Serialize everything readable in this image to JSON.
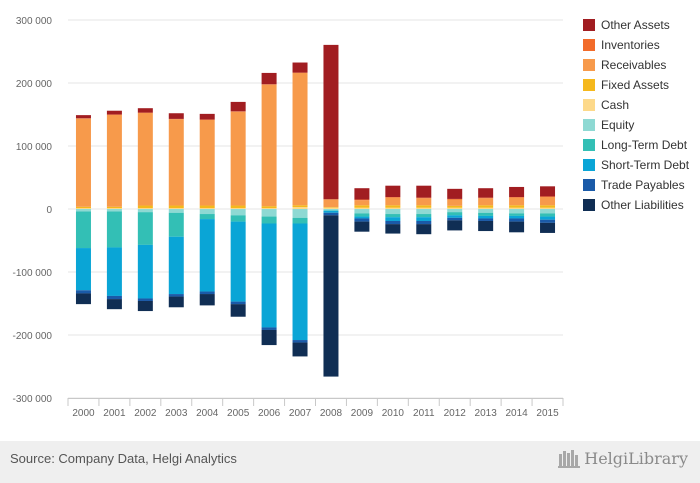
{
  "chart_data": {
    "type": "bar",
    "stacked": true,
    "categories": [
      "2000",
      "2001",
      "2002",
      "2003",
      "2004",
      "2005",
      "2006",
      "2007",
      "2008",
      "2009",
      "2010",
      "2011",
      "2012",
      "2013",
      "2014",
      "2015"
    ],
    "ylim": [
      -300000,
      300000
    ],
    "yticks": [
      300000,
      200000,
      100000,
      0,
      -100000,
      -200000,
      -300000
    ],
    "ytick_labels": [
      "300 000",
      "200 000",
      "100 000",
      "0",
      "-100 000",
      "-200 000",
      "-300 000"
    ],
    "grid": true,
    "legend_position": "right",
    "series": [
      {
        "name": "Other Assets",
        "color": "#a11d21",
        "values": [
          5000,
          6000,
          7000,
          9000,
          9000,
          15000,
          18000,
          16000,
          245000,
          18000,
          18000,
          19000,
          16000,
          15000,
          16000,
          16000
        ]
      },
      {
        "name": "Inventories",
        "color": "#f26b2a",
        "values": [
          500,
          500,
          500,
          500,
          500,
          500,
          500,
          500,
          500,
          1000,
          1000,
          1000,
          1000,
          1000,
          1000,
          1000
        ]
      },
      {
        "name": "Receivables",
        "color": "#f79a4b",
        "values": [
          140000,
          146000,
          147000,
          137000,
          136000,
          149000,
          193000,
          210000,
          12000,
          8000,
          12000,
          11000,
          10000,
          11000,
          12000,
          13000
        ]
      },
      {
        "name": "Fixed Assets",
        "color": "#f5b81c",
        "values": [
          2000,
          2000,
          4000,
          4000,
          4000,
          4000,
          3000,
          3000,
          1000,
          4000,
          4000,
          4000,
          3000,
          4000,
          4000,
          4000
        ]
      },
      {
        "name": "Cash",
        "color": "#fdd98a",
        "values": [
          1500,
          1500,
          1500,
          1500,
          1500,
          1500,
          1500,
          3000,
          2000,
          2000,
          2000,
          2000,
          2000,
          2000,
          2000,
          2000
        ]
      },
      {
        "name": "Equity",
        "color": "#8ed9d3",
        "values": [
          -4000,
          -4000,
          -5000,
          -6000,
          -8000,
          -10000,
          -12000,
          -14000,
          -2000,
          -7000,
          -8000,
          -8000,
          -5000,
          -6000,
          -7000,
          -7000
        ]
      },
      {
        "name": "Long-Term Debt",
        "color": "#33bfb5",
        "values": [
          -58000,
          -57000,
          -52000,
          -38000,
          -8000,
          -10000,
          -11000,
          -9000,
          -1000,
          -5000,
          -5000,
          -5000,
          -5000,
          -5000,
          -4000,
          -5000
        ]
      },
      {
        "name": "Short-Term Debt",
        "color": "#0aa5d6",
        "values": [
          -67000,
          -77000,
          -85000,
          -91000,
          -115000,
          -127000,
          -165000,
          -185000,
          -3000,
          -3000,
          -6000,
          -6000,
          -4000,
          -4000,
          -4000,
          -5000
        ]
      },
      {
        "name": "Trade Payables",
        "color": "#1a5aa8",
        "values": [
          -5000,
          -5000,
          -4000,
          -4000,
          -4000,
          -4000,
          -4000,
          -4000,
          -4000,
          -5000,
          -5000,
          -5000,
          -4000,
          -4000,
          -5000,
          -5000
        ]
      },
      {
        "name": "Other Liabilities",
        "color": "#102e54",
        "values": [
          -17000,
          -16000,
          -16000,
          -17000,
          -18000,
          -20000,
          -24000,
          -22000,
          -256000,
          -16000,
          -15000,
          -16000,
          -16000,
          -16000,
          -17000,
          -16000
        ]
      }
    ]
  },
  "footer": {
    "source": "Source: Company Data, Helgi Analytics",
    "brand": "HelgiLibrary"
  }
}
